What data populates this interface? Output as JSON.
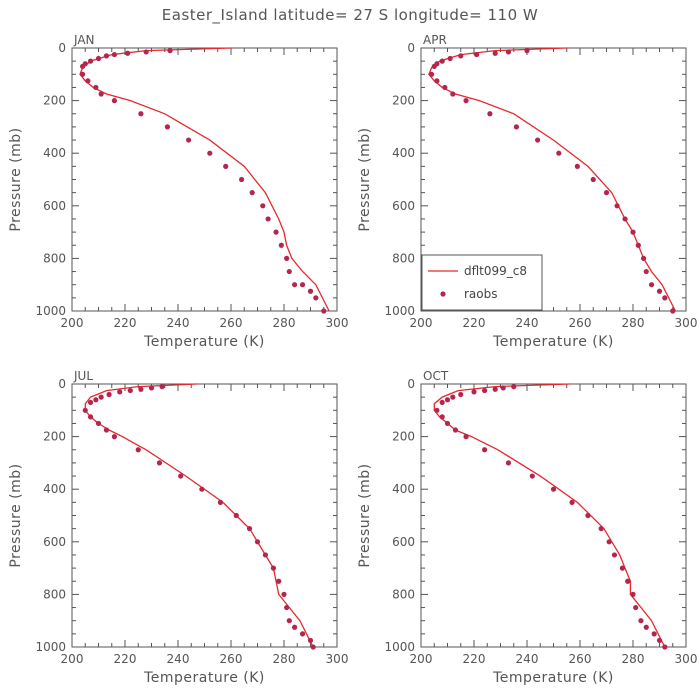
{
  "title": "Easter_Island  latitude= 27 S longitude= 110 W",
  "colors": {
    "model": "#e8282c",
    "obs": "#b5264e",
    "axis": "#555555"
  },
  "legend": {
    "model_label": "dflt099_c8",
    "obs_label": "raobs"
  },
  "chart_data": [
    {
      "type": "line",
      "month": "JAN",
      "xlabel": "Temperature (K)",
      "ylabel": "Pressure (mb)",
      "xlim": [
        200,
        300
      ],
      "ylim": [
        0,
        1000
      ],
      "xticks": [
        "200",
        "220",
        "240",
        "260",
        "280",
        "300"
      ],
      "yticks": [
        "0",
        "200",
        "400",
        "600",
        "800",
        "1000"
      ],
      "y_inverted": true,
      "series": [
        {
          "name": "dflt099_c8",
          "kind": "line",
          "x": [
            260,
            228,
            215,
            207,
            204,
            203,
            205,
            208,
            213,
            222,
            235,
            252,
            265,
            273,
            278,
            280,
            281,
            283,
            287,
            292,
            297
          ],
          "y": [
            0,
            10,
            25,
            50,
            75,
            100,
            125,
            150,
            175,
            200,
            250,
            350,
            450,
            550,
            650,
            700,
            750,
            800,
            850,
            900,
            1000
          ]
        },
        {
          "name": "raobs",
          "kind": "scatter",
          "x": [
            237,
            228,
            221,
            216,
            213,
            210,
            207,
            205,
            204,
            204,
            206,
            209,
            211,
            216,
            226,
            236,
            244,
            252,
            258,
            264,
            268,
            272,
            274,
            277,
            279,
            281,
            282,
            284,
            287,
            290,
            292,
            295
          ],
          "y": [
            10,
            15,
            20,
            25,
            30,
            40,
            50,
            60,
            70,
            100,
            125,
            150,
            175,
            200,
            250,
            300,
            350,
            400,
            450,
            500,
            550,
            600,
            650,
            700,
            750,
            800,
            850,
            900,
            900,
            925,
            950,
            1000
          ]
        }
      ]
    },
    {
      "type": "line",
      "month": "APR",
      "xlabel": "Temperature (K)",
      "ylabel": "Pressure (mb)",
      "xlim": [
        200,
        300
      ],
      "ylim": [
        0,
        1000
      ],
      "xticks": [
        "200",
        "220",
        "240",
        "260",
        "280",
        "300"
      ],
      "yticks": [
        "0",
        "200",
        "400",
        "600",
        "800",
        "1000"
      ],
      "y_inverted": true,
      "series": [
        {
          "name": "dflt099_c8",
          "kind": "line",
          "x": [
            255,
            228,
            215,
            207,
            204,
            203,
            205,
            208,
            213,
            222,
            235,
            250,
            263,
            272,
            277,
            280,
            282,
            284,
            287,
            291,
            296
          ],
          "y": [
            0,
            10,
            25,
            50,
            75,
            100,
            125,
            150,
            175,
            200,
            250,
            350,
            450,
            550,
            650,
            700,
            750,
            800,
            850,
            900,
            1000
          ]
        },
        {
          "name": "raobs",
          "kind": "scatter",
          "x": [
            240,
            233,
            228,
            221,
            215,
            211,
            208,
            206,
            205,
            204,
            206,
            209,
            212,
            217,
            226,
            236,
            244,
            252,
            259,
            265,
            270,
            274,
            277,
            280,
            282,
            284,
            285,
            287,
            290,
            292,
            295
          ],
          "y": [
            10,
            15,
            20,
            25,
            30,
            40,
            50,
            60,
            70,
            100,
            125,
            150,
            175,
            200,
            250,
            300,
            350,
            400,
            450,
            500,
            550,
            600,
            650,
            700,
            750,
            800,
            850,
            900,
            925,
            950,
            1000
          ]
        }
      ]
    },
    {
      "type": "line",
      "month": "JUL",
      "xlabel": "Temperature (K)",
      "ylabel": "Pressure (mb)",
      "xlim": [
        200,
        300
      ],
      "ylim": [
        0,
        1000
      ],
      "xticks": [
        "200",
        "220",
        "240",
        "260",
        "280",
        "300"
      ],
      "yticks": [
        "0",
        "200",
        "400",
        "600",
        "800",
        "1000"
      ],
      "y_inverted": true,
      "series": [
        {
          "name": "dflt099_c8",
          "kind": "line",
          "x": [
            247,
            225,
            213,
            207,
            205,
            205,
            207,
            210,
            214,
            219,
            228,
            243,
            257,
            267,
            273,
            276,
            277,
            278,
            282,
            286,
            291
          ],
          "y": [
            0,
            10,
            25,
            50,
            75,
            100,
            125,
            150,
            175,
            200,
            250,
            350,
            450,
            550,
            650,
            700,
            750,
            800,
            850,
            900,
            1000
          ]
        },
        {
          "name": "raobs",
          "kind": "scatter",
          "x": [
            234,
            230,
            226,
            222,
            218,
            214,
            211,
            209,
            207,
            205,
            207,
            210,
            213,
            216,
            225,
            233,
            241,
            249,
            256,
            262,
            267,
            270,
            273,
            276,
            278,
            280,
            281,
            282,
            284,
            287,
            290,
            291
          ],
          "y": [
            10,
            15,
            20,
            25,
            30,
            40,
            50,
            60,
            70,
            100,
            125,
            150,
            175,
            200,
            250,
            300,
            350,
            400,
            450,
            500,
            550,
            600,
            650,
            700,
            750,
            800,
            850,
            900,
            925,
            950,
            975,
            1000
          ]
        }
      ]
    },
    {
      "type": "line",
      "month": "OCT",
      "xlabel": "Temperature (K)",
      "ylabel": "Pressure (mb)",
      "xlim": [
        200,
        300
      ],
      "ylim": [
        0,
        1000
      ],
      "xticks": [
        "200",
        "220",
        "240",
        "260",
        "280",
        "300"
      ],
      "yticks": [
        "0",
        "200",
        "400",
        "600",
        "800",
        "1000"
      ],
      "y_inverted": true,
      "series": [
        {
          "name": "dflt099_c8",
          "kind": "line",
          "x": [
            256,
            228,
            214,
            208,
            205,
            205,
            207,
            210,
            213,
            219,
            229,
            245,
            259,
            269,
            275,
            277,
            279,
            279,
            283,
            287,
            292
          ],
          "y": [
            0,
            10,
            25,
            50,
            75,
            100,
            125,
            150,
            175,
            200,
            250,
            350,
            450,
            550,
            650,
            700,
            750,
            800,
            850,
            900,
            1000
          ]
        },
        {
          "name": "raobs",
          "kind": "scatter",
          "x": [
            235,
            231,
            228,
            224,
            220,
            215,
            212,
            210,
            208,
            206,
            208,
            210,
            213,
            217,
            224,
            233,
            242,
            250,
            257,
            263,
            268,
            271,
            273,
            276,
            278,
            280,
            281,
            283,
            285,
            288,
            290,
            292
          ],
          "y": [
            10,
            15,
            20,
            25,
            30,
            40,
            50,
            60,
            70,
            100,
            125,
            150,
            175,
            200,
            250,
            300,
            350,
            400,
            450,
            500,
            550,
            600,
            650,
            700,
            750,
            800,
            850,
            900,
            925,
            950,
            975,
            1000
          ]
        }
      ]
    }
  ]
}
